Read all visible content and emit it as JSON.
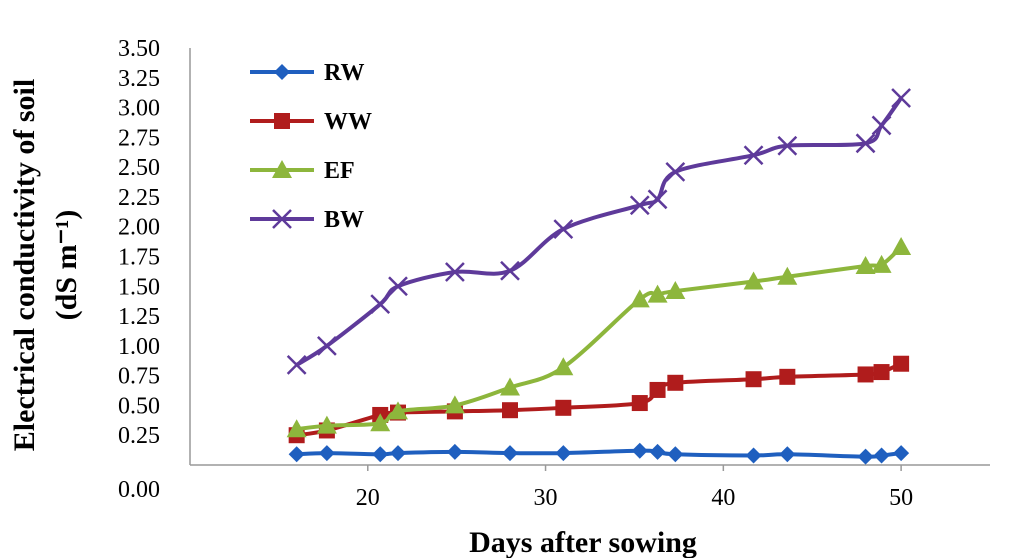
{
  "chart_data": {
    "type": "line",
    "xlabel": "Days after sowing",
    "ylabel_line1": "Electrical conductivity of soil",
    "ylabel_line2": "(dS m⁻¹)",
    "xlim": [
      10,
      55
    ],
    "ylim": [
      0,
      3.5
    ],
    "xticks": [
      "20",
      "30",
      "40",
      "50"
    ],
    "yticks": [
      "0.00",
      "0.25",
      "0.50",
      "0.75",
      "1.00",
      "1.25",
      "1.50",
      "1.75",
      "2.00",
      "2.25",
      "2.50",
      "2.75",
      "3.00",
      "3.25",
      "3.50"
    ],
    "legend_position": "top-left",
    "grid": false,
    "series": [
      {
        "name": "RW",
        "color": "#1f5fbf",
        "marker": "diamond",
        "x": [
          16,
          17.7,
          20.7,
          21.7,
          24.9,
          28,
          31,
          35.3,
          36.3,
          37.3,
          41.7,
          43.6,
          48,
          48.9,
          50
        ],
        "y": [
          0.09,
          0.1,
          0.09,
          0.1,
          0.11,
          0.1,
          0.1,
          0.12,
          0.11,
          0.09,
          0.08,
          0.09,
          0.07,
          0.08,
          0.1
        ]
      },
      {
        "name": "WW",
        "color": "#b01c1c",
        "marker": "square",
        "x": [
          16,
          17.7,
          20.7,
          21.7,
          24.9,
          28,
          31,
          35.3,
          36.3,
          37.3,
          41.7,
          43.6,
          48,
          48.9,
          50
        ],
        "y": [
          0.25,
          0.29,
          0.42,
          0.44,
          0.45,
          0.46,
          0.48,
          0.52,
          0.63,
          0.69,
          0.72,
          0.74,
          0.76,
          0.78,
          0.85
        ]
      },
      {
        "name": "EF",
        "color": "#8db63c",
        "marker": "triangle",
        "x": [
          16,
          17.7,
          20.7,
          21.7,
          24.9,
          28,
          31,
          35.3,
          36.3,
          37.3,
          41.7,
          43.6,
          48,
          48.9,
          50
        ],
        "y": [
          0.3,
          0.33,
          0.35,
          0.45,
          0.5,
          0.65,
          0.82,
          1.39,
          1.43,
          1.46,
          1.54,
          1.58,
          1.67,
          1.68,
          1.83
        ]
      },
      {
        "name": "BW",
        "color": "#5e3a9a",
        "marker": "x",
        "x": [
          16,
          17.7,
          20.7,
          21.7,
          24.9,
          28,
          31,
          35.3,
          36.3,
          37.3,
          41.7,
          43.6,
          48,
          48.9,
          50
        ],
        "y": [
          0.84,
          1.0,
          1.35,
          1.5,
          1.62,
          1.63,
          1.98,
          2.18,
          2.23,
          2.46,
          2.6,
          2.68,
          2.7,
          2.85,
          3.08
        ]
      }
    ]
  }
}
